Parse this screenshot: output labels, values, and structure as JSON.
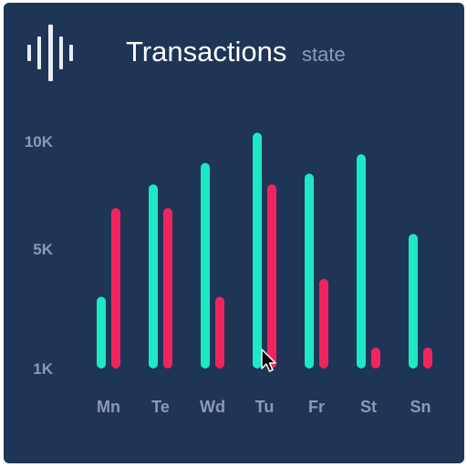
{
  "header": {
    "title": "Transactions",
    "subtitle": "state"
  },
  "icons": {
    "logo": "sound-wave-icon",
    "cursor": "mouse-pointer-icon"
  },
  "colors": {
    "background": "#1f3556",
    "series_a": "#1de9c6",
    "series_b": "#f0255f",
    "axis_text": "#8b9ab3"
  },
  "chart_data": {
    "type": "bar",
    "title": "Transactions",
    "subtitle": "state",
    "categories": [
      "Mn",
      "Te",
      "Wd",
      "Tu",
      "Fr",
      "St",
      "Sn"
    ],
    "y_ticks": [
      {
        "value": 1000,
        "label": "1K"
      },
      {
        "value": 5000,
        "label": "5K"
      },
      {
        "value": 10000,
        "label": "10K"
      }
    ],
    "ylim": [
      1000,
      10000
    ],
    "grid": false,
    "series": [
      {
        "color": "#1de9c6",
        "values": [
          3400,
          8000,
          9000,
          10400,
          8500,
          9400,
          5700
        ]
      },
      {
        "color": "#f0255f",
        "values": [
          6900,
          6900,
          3400,
          8000,
          4000,
          1700,
          1700
        ]
      }
    ]
  }
}
